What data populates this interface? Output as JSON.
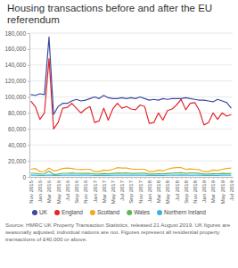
{
  "chart_data": {
    "type": "line",
    "title": "Housing transactions before and after the EU referendum",
    "source": "Source: HMRC UK Property Transaction Statistics, released 21 August 2019. UK figures are seasonally adjusted; individual nations are not. Figures represent all residential property transactions of £40,000 or above.",
    "categories": [
      "Nov 2015",
      null,
      "Jan 2016",
      null,
      "Mar 2016",
      null,
      "May 2016",
      null,
      "Jul 2016",
      null,
      "Sep 2016",
      null,
      "Nov 2016",
      null,
      "Jan 2017",
      null,
      "Mar 2017",
      null,
      "May 2017",
      null,
      "Jul 2017",
      null,
      "Sep 2017",
      null,
      "Nov 2017",
      null,
      "Jan 2018",
      null,
      "Mar 2018",
      null,
      "May 2018",
      null,
      "Jul 2018",
      null,
      "Sep 2018",
      null,
      "Nov 2018",
      null,
      "Jan 2019",
      null,
      "Mar 2019",
      null,
      "May 2019",
      null,
      "Jul 2019"
    ],
    "series": [
      {
        "name": "UK",
        "color": "#3a4a9f",
        "values": [
          103000,
          102000,
          104000,
          103000,
          175000,
          78000,
          88000,
          92000,
          92000,
          95000,
          97000,
          95000,
          96000,
          98000,
          100000,
          98000,
          102000,
          99000,
          98000,
          98000,
          99000,
          98000,
          99000,
          98000,
          100000,
          98000,
          96000,
          97000,
          96000,
          98000,
          97000,
          98000,
          98000,
          98000,
          99000,
          98000,
          97000,
          96000,
          96000,
          95000,
          94000,
          97000,
          95000,
          93000,
          86000
        ]
      },
      {
        "name": "England",
        "color": "#e2262b",
        "values": [
          95000,
          88000,
          72000,
          80000,
          148000,
          60000,
          68000,
          86000,
          87000,
          92000,
          86000,
          80000,
          85000,
          88000,
          68000,
          70000,
          86000,
          71000,
          85000,
          92000,
          86000,
          88000,
          85000,
          84000,
          90000,
          88000,
          67000,
          68000,
          80000,
          71000,
          83000,
          85000,
          90000,
          97000,
          84000,
          92000,
          93000,
          83000,
          65000,
          68000,
          80000,
          72000,
          80000,
          76000,
          78000
        ]
      },
      {
        "name": "Scotland",
        "color": "#f4a81d",
        "values": [
          9500,
          10500,
          6500,
          7000,
          11000,
          7500,
          8500,
          10500,
          11000,
          10500,
          9500,
          9000,
          9500,
          9500,
          6500,
          6500,
          8500,
          8000,
          9500,
          11500,
          11000,
          11000,
          10000,
          9500,
          9500,
          9500,
          6500,
          6500,
          8500,
          7500,
          9500,
          11000,
          11500,
          11500,
          9500,
          10000,
          9500,
          9000,
          6500,
          6500,
          8500,
          8000,
          9500,
          10500,
          11000
        ]
      },
      {
        "name": "Wales",
        "color": "#5bb55a",
        "values": [
          4500,
          4500,
          3500,
          3800,
          7000,
          3000,
          3500,
          4500,
          4500,
          4800,
          4500,
          4300,
          4300,
          4500,
          3400,
          3500,
          4300,
          3700,
          4300,
          4800,
          4600,
          4800,
          4400,
          4300,
          4600,
          4600,
          3500,
          3600,
          4200,
          3700,
          4400,
          4600,
          4800,
          5100,
          4400,
          4800,
          4800,
          4300,
          3500,
          3600,
          4200,
          3800,
          4300,
          4100,
          4300
        ]
      },
      {
        "name": "Northern Ireland",
        "color": "#3fb1e3",
        "values": [
          2100,
          2000,
          1700,
          1800,
          2400,
          1800,
          1900,
          2000,
          2100,
          2100,
          2000,
          2000,
          2000,
          2000,
          1700,
          1800,
          2100,
          1900,
          2100,
          2200,
          2100,
          2200,
          2100,
          2100,
          2200,
          2100,
          1800,
          1900,
          2100,
          1900,
          2100,
          2200,
          2200,
          2300,
          2100,
          2200,
          2200,
          2000,
          1800,
          1900,
          2100,
          1900,
          2100,
          2100,
          2100
        ]
      }
    ],
    "ylim": [
      0,
      180000
    ],
    "yticks": [
      0,
      {
        "value": 20000,
        "label": "20,000"
      },
      {
        "value": 40000,
        "label": "40,000"
      },
      {
        "value": 60000,
        "label": "60,000"
      },
      {
        "value": 80000,
        "label": "80,000"
      },
      {
        "value": 100000,
        "label": "100,000"
      },
      {
        "value": 120000,
        "label": "120,000"
      },
      {
        "value": 140000,
        "label": "140,000"
      },
      {
        "value": 160000,
        "label": "160,000"
      },
      {
        "value": 180000,
        "label": "180,000"
      }
    ],
    "grid": true,
    "legend": "bottom"
  }
}
